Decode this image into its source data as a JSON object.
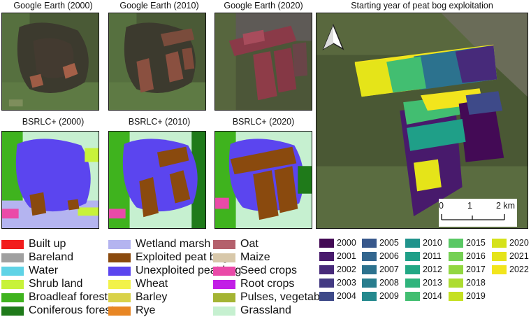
{
  "titles": {
    "ge2000": "Google Earth (2000)",
    "ge2010": "Google Earth (2010)",
    "ge2020": "Google Earth (2020)",
    "bs2000": "BSRLC+ (2000)",
    "bs2010": "BSRLC+ (2010)",
    "bs2020": "BSRLC+ (2020)",
    "start_year": "Starting year of peat bog exploitation"
  },
  "scale": {
    "t0": "0",
    "t1": "1",
    "t2": "2 km"
  },
  "north_icon": "north-arrow-icon",
  "landcover_legend": [
    {
      "label": "Built up",
      "color": "#f21d1d"
    },
    {
      "label": "Bareland",
      "color": "#a0a0a0"
    },
    {
      "label": "Water",
      "color": "#5fd3e6"
    },
    {
      "label": "Shrub land",
      "color": "#c8f23a"
    },
    {
      "label": "Broadleaf forest",
      "color": "#3fb31e"
    },
    {
      "label": "Coniferous forest",
      "color": "#1f7a1a"
    },
    {
      "label": "Wetland marsh",
      "color": "#b4b4f0"
    },
    {
      "label": "Exploited peat bog",
      "color": "#8a4a0e"
    },
    {
      "label": "Unexploited peat bog",
      "color": "#5b45ef"
    },
    {
      "label": "Wheat",
      "color": "#f2f24a"
    },
    {
      "label": "Barley",
      "color": "#d9d249"
    },
    {
      "label": "Rye",
      "color": "#e88624"
    },
    {
      "label": "Oat",
      "color": "#b4606c"
    },
    {
      "label": "Maize",
      "color": "#d8c8aa"
    },
    {
      "label": "Seed crops",
      "color": "#ea4aa8"
    },
    {
      "label": "Root crops",
      "color": "#c21fe6"
    },
    {
      "label": "Pulses, vegetables",
      "color": "#a4b433"
    },
    {
      "label": "Grassland",
      "color": "#c6f0d0"
    }
  ],
  "year_legend": [
    {
      "label": "2000",
      "color": "#430a55"
    },
    {
      "label": "2001",
      "color": "#481a6c"
    },
    {
      "label": "2002",
      "color": "#472a7a"
    },
    {
      "label": "2003",
      "color": "#433a83"
    },
    {
      "label": "2004",
      "color": "#3e4a89"
    },
    {
      "label": "2005",
      "color": "#38588c"
    },
    {
      "label": "2006",
      "color": "#32658e"
    },
    {
      "label": "2007",
      "color": "#2c728e"
    },
    {
      "label": "2008",
      "color": "#287d8e"
    },
    {
      "label": "2009",
      "color": "#24898e"
    },
    {
      "label": "2010",
      "color": "#20938c"
    },
    {
      "label": "2011",
      "color": "#1f9f88"
    },
    {
      "label": "2012",
      "color": "#22a884"
    },
    {
      "label": "2013",
      "color": "#2fb47c"
    },
    {
      "label": "2014",
      "color": "#42be71"
    },
    {
      "label": "2015",
      "color": "#59c864"
    },
    {
      "label": "2016",
      "color": "#75d054"
    },
    {
      "label": "2017",
      "color": "#92d741"
    },
    {
      "label": "2018",
      "color": "#addc30"
    },
    {
      "label": "2019",
      "color": "#c5e021"
    },
    {
      "label": "2020",
      "color": "#d5e21a"
    },
    {
      "label": "2021",
      "color": "#e5e419"
    },
    {
      "label": "2022",
      "color": "#f2e51d"
    }
  ]
}
